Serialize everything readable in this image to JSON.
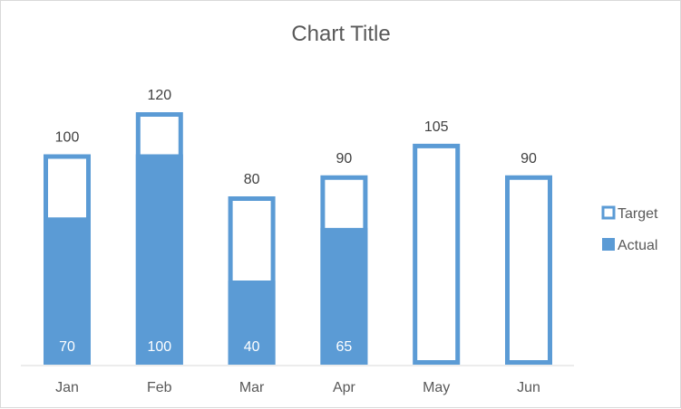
{
  "chart_data": {
    "type": "bar",
    "title": "Chart Title",
    "xlabel": "",
    "ylabel": "",
    "categories": [
      "Jan",
      "Feb",
      "Mar",
      "Apr",
      "May",
      "Jun"
    ],
    "series": [
      {
        "name": "Target",
        "values": [
          100,
          120,
          80,
          90,
          105,
          90
        ],
        "style": "outline"
      },
      {
        "name": "Actual",
        "values": [
          70,
          100,
          40,
          65,
          null,
          null
        ],
        "style": "filled"
      }
    ],
    "ylim": [
      0,
      120
    ],
    "grid": false,
    "legend": "right",
    "colors": {
      "primary": "#5b9bd5",
      "text": "#595959"
    }
  }
}
